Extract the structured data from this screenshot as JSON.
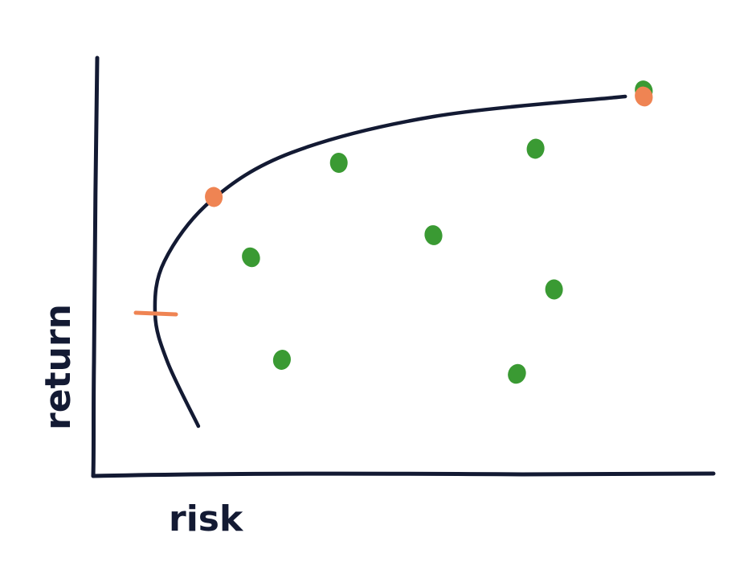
{
  "chart_data": {
    "type": "scatter",
    "xlabel": "risk",
    "ylabel": "return",
    "xlim": [
      0,
      10
    ],
    "ylim": [
      0,
      10
    ],
    "grid": false,
    "legend": "none",
    "frontier": {
      "x": [
        1.7,
        1.2,
        1.0,
        1.15,
        1.9,
        3.2,
        5.5,
        8.6
      ],
      "y": [
        1.2,
        2.8,
        4.0,
        5.3,
        6.8,
        8.0,
        8.9,
        9.4
      ]
    },
    "series": [
      {
        "color": "#3a9a33",
        "points": [
          {
            "x": 2.55,
            "y": 5.4
          },
          {
            "x": 3.05,
            "y": 2.85
          },
          {
            "x": 3.97,
            "y": 7.75
          },
          {
            "x": 5.5,
            "y": 5.95
          },
          {
            "x": 6.85,
            "y": 2.5
          },
          {
            "x": 7.15,
            "y": 8.1
          },
          {
            "x": 7.45,
            "y": 4.6
          },
          {
            "x": 8.9,
            "y": 9.55
          }
        ]
      },
      {
        "color": "#ef8453",
        "points": [
          {
            "x": 1.95,
            "y": 6.9
          },
          {
            "x": 8.9,
            "y": 9.4
          }
        ]
      }
    ],
    "markers": [
      {
        "shape": "dash",
        "x": 1.0,
        "y": 4.0,
        "color": "#ef8453"
      }
    ],
    "colors": {
      "axis": "#131a33",
      "curve": "#131a33",
      "green": "#3a9a33",
      "orange": "#ef8453"
    }
  }
}
